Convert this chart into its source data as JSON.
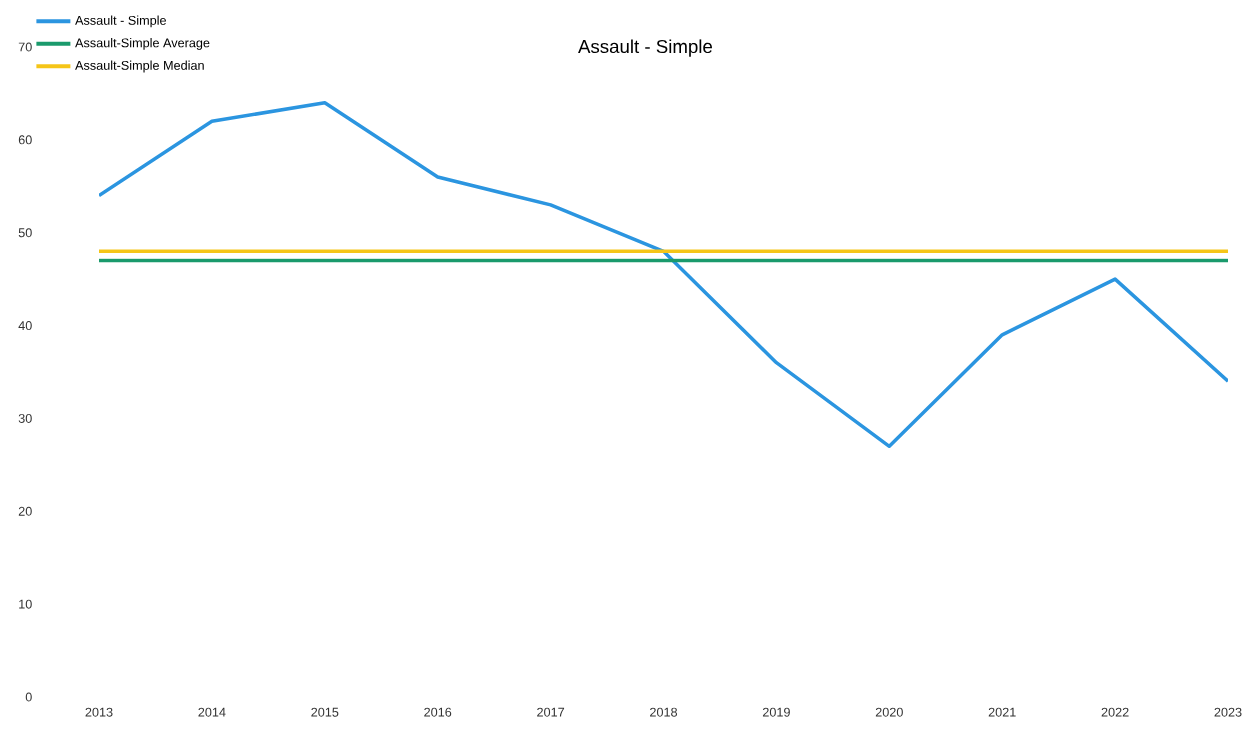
{
  "chart_data": {
    "type": "line",
    "title": "Assault - Simple",
    "categories": [
      "2013",
      "2014",
      "2015",
      "2016",
      "2017",
      "2018",
      "2019",
      "2020",
      "2021",
      "2022",
      "2023"
    ],
    "series": [
      {
        "name": "Assault - Simple",
        "color": "#2b95e0",
        "values": [
          54,
          62,
          64,
          56,
          53,
          48,
          36,
          27,
          39,
          45,
          34
        ]
      },
      {
        "name": "Assault-Simple Average",
        "color": "#1a9a6c",
        "values": [
          47,
          47,
          47,
          47,
          47,
          47,
          47,
          47,
          47,
          47,
          47
        ]
      },
      {
        "name": "Assault-Simple Median",
        "color": "#f5c518",
        "values": [
          48,
          48,
          48,
          48,
          48,
          48,
          48,
          48,
          48,
          48,
          48
        ]
      }
    ],
    "ylim": [
      0,
      70
    ],
    "yticks": [
      0,
      10,
      20,
      30,
      40,
      50,
      60,
      70
    ],
    "legend": "top left",
    "marker": "none",
    "line_style": "solid"
  }
}
